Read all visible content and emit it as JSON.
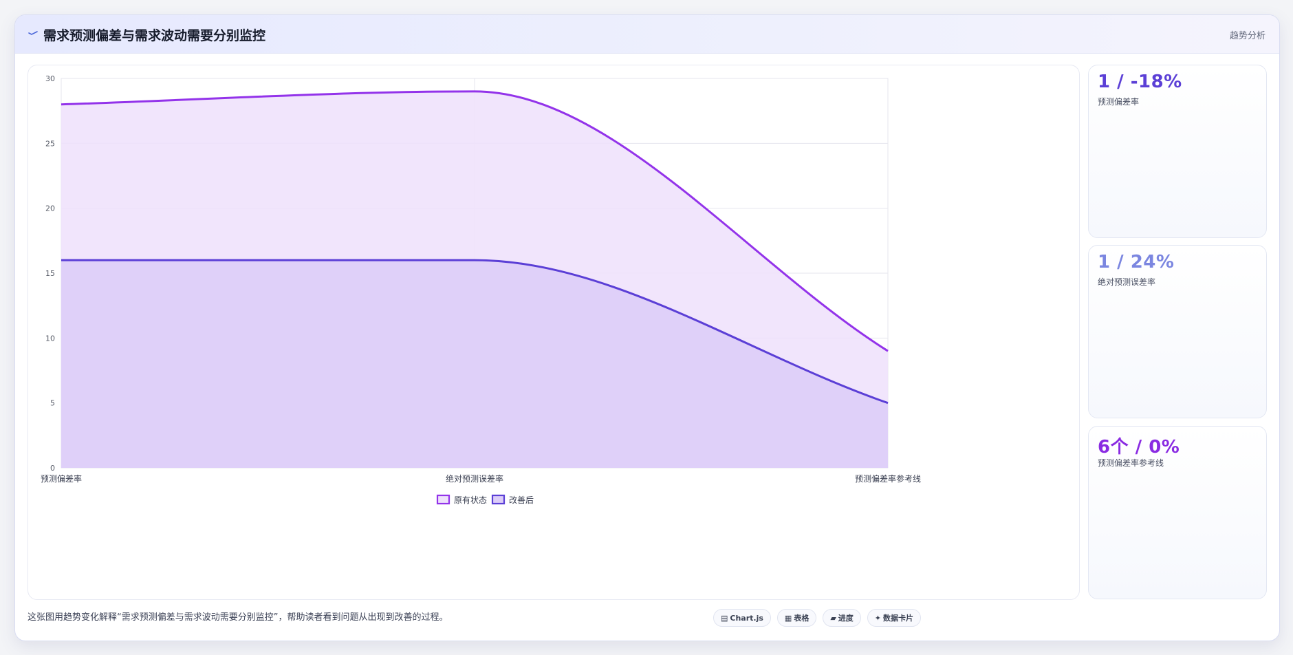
{
  "header": {
    "title": "需求预测偏差与需求波动需要分别监控",
    "right_label": "趋势分析",
    "icon": "chart-line-icon"
  },
  "chart_data": {
    "type": "area",
    "categories": [
      "预测偏差率",
      "绝对预测误差率",
      "预测偏差率参考线"
    ],
    "series": [
      {
        "name": "原有状态",
        "values": [
          28,
          29,
          9
        ],
        "color": "#9333ea",
        "fill": "#eee1fb"
      },
      {
        "name": "改善后",
        "values": [
          16,
          16,
          5
        ],
        "color": "#5b3fd6",
        "fill": "#dccdf8"
      }
    ],
    "ylim": [
      0,
      30
    ],
    "yticks": [
      0,
      5,
      10,
      15,
      20,
      25,
      30
    ],
    "grid": true,
    "legend_position": "bottom"
  },
  "stats": [
    {
      "value": "1 / -18%",
      "label": "预测偏差率",
      "color": "#5b3fd6"
    },
    {
      "value": "1 / 24%",
      "label": "绝对预测误差率",
      "color": "#7b86e0"
    },
    {
      "value": "6个 / 0%",
      "label": "预测偏差率参考线",
      "color": "#8a2be2"
    }
  ],
  "footer": {
    "description": "这张图用趋势变化解释“需求预测偏差与需求波动需要分别监控”，帮助读者看到问题从出现到改善的过程。",
    "pills": [
      {
        "icon": "chart-icon",
        "glyph": "▤",
        "label": "Chart.js"
      },
      {
        "icon": "table-icon",
        "glyph": "▦",
        "label": "表格"
      },
      {
        "icon": "progress-icon",
        "glyph": "▰",
        "label": "进度"
      },
      {
        "icon": "card-icon",
        "glyph": "✦",
        "label": "数据卡片"
      }
    ]
  }
}
